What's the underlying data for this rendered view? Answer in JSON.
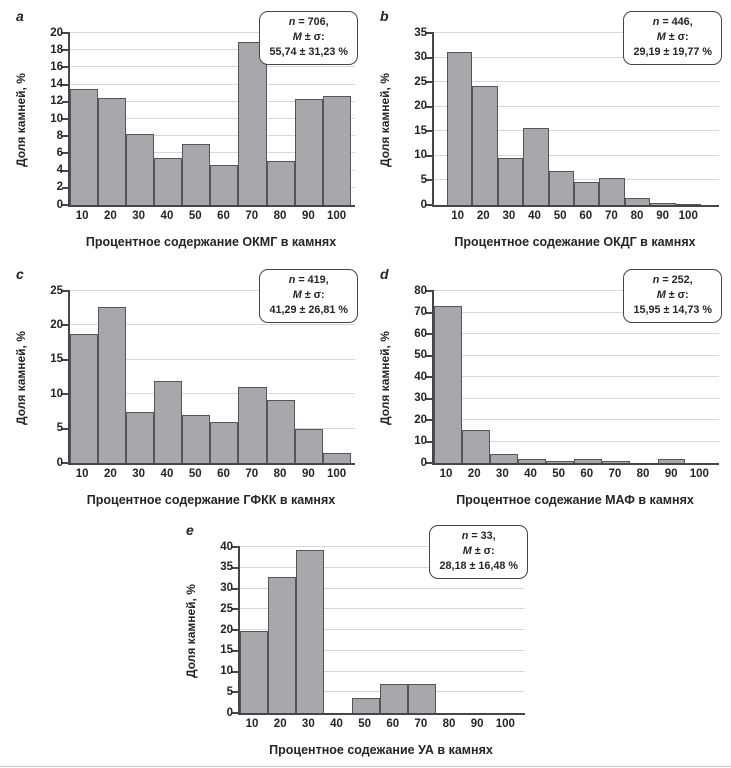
{
  "colors": {
    "bar_fill": "#a8a8ac",
    "bar_border": "#54555a",
    "gridline": "#d8d8d8",
    "axis": "#45464a",
    "text": "#22252c"
  },
  "chart_data": [
    {
      "type": "bar",
      "panel_letter": "a",
      "xlabel": "Процентное содержание ОКМГ в камнях",
      "ylabel": "Доля камней, %",
      "categories": [
        "10",
        "20",
        "30",
        "40",
        "50",
        "60",
        "70",
        "80",
        "90",
        "100"
      ],
      "values": [
        13.5,
        12.5,
        8.3,
        5.5,
        7.1,
        4.6,
        18.9,
        5.1,
        12.3,
        12.7
      ],
      "ylim": [
        0,
        20
      ],
      "ytick_step": 2,
      "grid": true,
      "annotation_lines": [
        "n = 706,",
        "M ± σ:",
        "55,74 ± 31,23 %"
      ],
      "layout": {
        "lead_slots": 0,
        "trail_slots": 0.15,
        "annotation_position": "top-right"
      }
    },
    {
      "type": "bar",
      "panel_letter": "b",
      "xlabel": "Процентное содежание ОКДГ в камнях",
      "ylabel": "Доля камней, %",
      "categories": [
        "10",
        "20",
        "30",
        "40",
        "50",
        "60",
        "70",
        "80",
        "90",
        "100"
      ],
      "values": [
        31.2,
        24.2,
        9.6,
        15.7,
        7.0,
        4.7,
        5.5,
        1.5,
        0.5,
        0.3
      ],
      "ylim": [
        0,
        35
      ],
      "ytick_step": 5,
      "grid": true,
      "annotation_lines": [
        "n = 446,",
        "M ± σ:",
        "29,19 ± 19,77 %"
      ],
      "layout": {
        "lead_slots": 0.5,
        "trail_slots": 0.7,
        "annotation_position": "top-right"
      }
    },
    {
      "type": "bar",
      "panel_letter": "c",
      "xlabel": "Процентное содержание ГФКК в камнях",
      "ylabel": "Доля камней, %",
      "categories": [
        "10",
        "20",
        "30",
        "40",
        "50",
        "60",
        "70",
        "80",
        "90",
        "100"
      ],
      "values": [
        18.8,
        22.7,
        7.4,
        11.9,
        7.0,
        6.0,
        11.0,
        9.1,
        5.0,
        1.5
      ],
      "ylim": [
        0,
        25
      ],
      "ytick_step": 5,
      "grid": true,
      "annotation_lines": [
        "n = 419,",
        "M ± σ:",
        "41,29 ± 26,81 %"
      ],
      "layout": {
        "lead_slots": 0,
        "trail_slots": 0.15,
        "annotation_position": "top-right"
      }
    },
    {
      "type": "bar",
      "panel_letter": "d",
      "xlabel": "Процентное содежание МАФ в камнях",
      "ylabel": "Доля камней, %",
      "categories": [
        "10",
        "20",
        "30",
        "40",
        "50",
        "60",
        "70",
        "80",
        "90",
        "100"
      ],
      "values": [
        73.0,
        15.5,
        4.4,
        2.0,
        0.8,
        2.0,
        0.8,
        0.0,
        2.0,
        0.0
      ],
      "ylim": [
        0,
        80
      ],
      "ytick_step": 10,
      "grid": true,
      "annotation_lines": [
        "n = 252,",
        "M ± σ:",
        "15,95 ± 14,73 %"
      ],
      "layout": {
        "lead_slots": 0,
        "trail_slots": 0.2,
        "annotation_position": "top-right"
      }
    },
    {
      "type": "bar",
      "panel_letter": "e",
      "xlabel": "Процентное содежание УА в камнях",
      "ylabel": "Доля камней, %",
      "categories": [
        "10",
        "20",
        "30",
        "40",
        "50",
        "60",
        "70",
        "80",
        "90",
        "100"
      ],
      "values": [
        19.7,
        32.7,
        39.4,
        0.0,
        3.6,
        6.9,
        6.9,
        0.0,
        0.0,
        0.0
      ],
      "ylim": [
        0,
        40
      ],
      "ytick_step": 5,
      "grid": true,
      "annotation_lines": [
        "n = 33,",
        "M ± σ:",
        "28,18 ± 16,48 %"
      ],
      "layout": {
        "lead_slots": 0,
        "trail_slots": 0.2,
        "annotation_position": "top-right"
      }
    }
  ]
}
